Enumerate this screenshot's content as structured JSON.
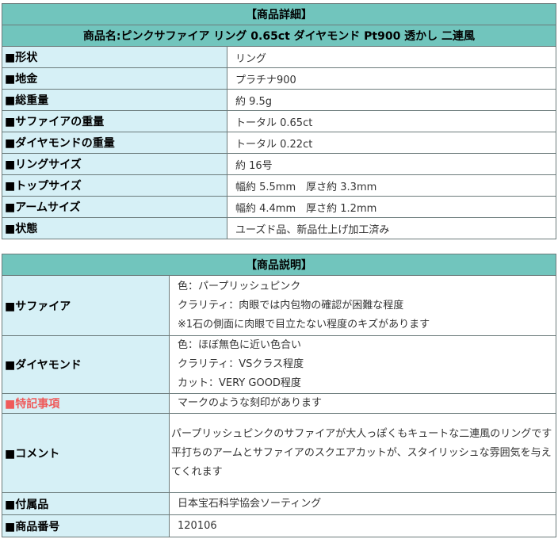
{
  "details": {
    "header": "【商品詳細】",
    "title": "商品名:ピンクサファイア リング 0.65ct ダイヤモンド Pt900 透かし 二連風",
    "rows": [
      {
        "label": "■形状",
        "value": "リング"
      },
      {
        "label": "■地金",
        "value": "プラチナ900"
      },
      {
        "label": "■総重量",
        "value": "約 9.5g"
      },
      {
        "label": "■サファイアの重量",
        "value": "トータル 0.65ct"
      },
      {
        "label": "■ダイヤモンドの重量",
        "value": "トータル 0.22ct"
      },
      {
        "label": "■リングサイズ",
        "value": "約 16号"
      },
      {
        "label": "■トップサイズ",
        "value": "幅約 5.5mm　厚さ約 3.3mm"
      },
      {
        "label": "■アームサイズ",
        "value": "幅約 4.4mm　厚さ約 1.2mm"
      },
      {
        "label": "■状態",
        "value": "ユーズド品、新品仕上げ加工済み"
      }
    ]
  },
  "description": {
    "header": "【商品説明】",
    "sapphire": {
      "label": "■サファイア",
      "lines": [
        "色：パープリッシュピンク",
        "クラリティ：肉眼では内包物の確認が困難な程度",
        "※1石の側面に肉眼で目立たない程度のキズがあります"
      ]
    },
    "diamond": {
      "label": "■ダイヤモンド",
      "lines": [
        "色：ほぼ無色に近い色合い",
        "クラリティ：VSクラス程度",
        "カット：VERY GOOD程度"
      ]
    },
    "notes": {
      "label": "■特記事項",
      "value": "マークのような刻印があります",
      "color": "#ef5a5a"
    },
    "comment": {
      "label": "■コメント",
      "lines": [
        "パープリッシュピンクのサファイアが大人っぽくもキュートな二連風のリングです",
        "平打ちのアームとサファイアのスクエアカットが、スタイリッシュな雰囲気を与えてくれます"
      ]
    },
    "accessories": {
      "label": "■付属品",
      "value": "日本宝石科学協会ソーティング"
    },
    "item_number": {
      "label": "■商品番号",
      "value": "120106"
    }
  }
}
